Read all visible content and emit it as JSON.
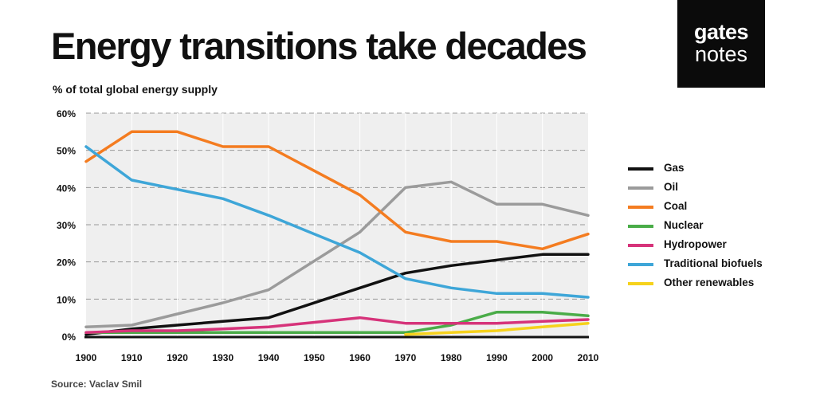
{
  "title": "Energy transitions take decades",
  "subtitle": "% of total global energy supply",
  "source": "Source: Vaclav Smil",
  "logo": {
    "line1": "gates",
    "line2": "notes"
  },
  "chart_data": {
    "type": "line",
    "title": "Energy transitions take decades",
    "ylabel": "% of total global energy supply",
    "xlabel": "",
    "xlim": [
      1900,
      2010
    ],
    "ylim": [
      0,
      60
    ],
    "grid": true,
    "legend_position": "right",
    "x_ticks": [
      1900,
      1910,
      1920,
      1930,
      1940,
      1950,
      1960,
      1970,
      1980,
      1990,
      2000,
      2010
    ],
    "y_ticks": [
      0,
      10,
      20,
      30,
      40,
      50,
      60
    ],
    "y_tick_labels": [
      "0%",
      "10%",
      "20%",
      "30%",
      "40%",
      "50%",
      "60%"
    ],
    "series": [
      {
        "name": "Gas",
        "color": "#111111",
        "x": [
          1900,
          1910,
          1920,
          1930,
          1940,
          1960,
          1970,
          1980,
          1990,
          2000,
          2010
        ],
        "y": [
          0.5,
          2,
          3,
          4,
          5,
          13,
          17,
          19,
          20.5,
          22,
          22
        ]
      },
      {
        "name": "Oil",
        "color": "#9b9b9b",
        "x": [
          1900,
          1910,
          1920,
          1930,
          1940,
          1960,
          1970,
          1980,
          1990,
          2000,
          2010
        ],
        "y": [
          2.5,
          3,
          6,
          9,
          12.5,
          28,
          40,
          41.5,
          35.5,
          35.5,
          32.5
        ]
      },
      {
        "name": "Coal",
        "color": "#f47c20",
        "x": [
          1900,
          1910,
          1920,
          1930,
          1940,
          1960,
          1970,
          1980,
          1990,
          2000,
          2010
        ],
        "y": [
          47,
          55,
          55,
          51,
          51,
          38,
          28,
          25.5,
          25.5,
          23.5,
          27.5
        ]
      },
      {
        "name": "Nuclear",
        "color": "#4aac48",
        "x": [
          1900,
          1910,
          1920,
          1930,
          1940,
          1960,
          1970,
          1980,
          1990,
          2000,
          2010
        ],
        "y": [
          1,
          1,
          1,
          1,
          1,
          1,
          1,
          3,
          6.5,
          6.5,
          5.5
        ]
      },
      {
        "name": "Hydropower",
        "color": "#d6337a",
        "x": [
          1900,
          1910,
          1920,
          1930,
          1940,
          1960,
          1970,
          1980,
          1990,
          2000,
          2010
        ],
        "y": [
          1,
          1.5,
          1.5,
          2,
          2.5,
          5,
          3.5,
          3.5,
          3.5,
          4,
          4.5
        ]
      },
      {
        "name": "Traditional biofuels",
        "color": "#3ea6d8",
        "x": [
          1900,
          1910,
          1920,
          1930,
          1940,
          1960,
          1970,
          1980,
          1990,
          2000,
          2010
        ],
        "y": [
          51,
          42,
          39.5,
          37,
          32.5,
          22.5,
          15.5,
          13,
          11.5,
          11.5,
          10.5
        ]
      },
      {
        "name": "Other renewables",
        "color": "#f6d21c",
        "x": [
          1970,
          1980,
          1990,
          2000,
          2010
        ],
        "y": [
          0.5,
          1,
          1.5,
          2.5,
          3.5
        ]
      }
    ]
  }
}
